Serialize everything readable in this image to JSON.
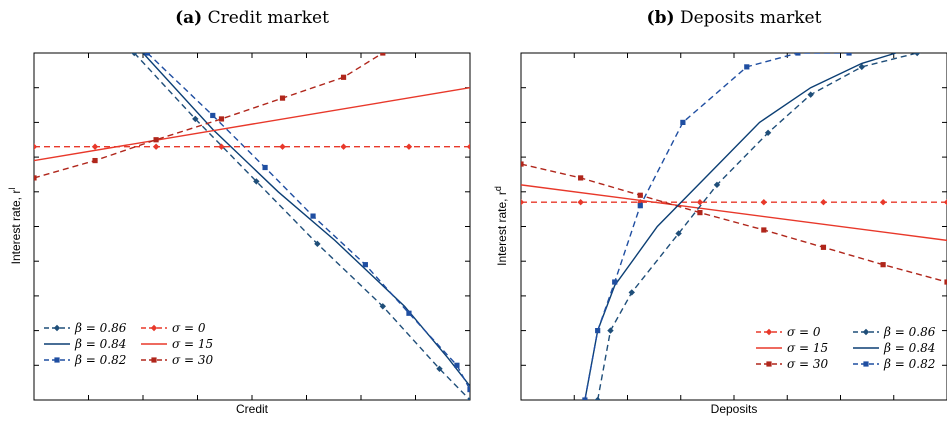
{
  "colors": {
    "navy": "#1f4e79",
    "blue_dark": "#0c3f74",
    "blue": "#1f4ea1",
    "red": "#e8382a",
    "darkred": "#b0261b",
    "axis": "#000000"
  },
  "chart_data": [
    {
      "type": "line",
      "title_tag": "(a)",
      "title": "Credit market",
      "xlabel": "Credit",
      "ylabel": "Interest rate, r",
      "ylabel_sup": "l",
      "xlim": [
        0,
        1
      ],
      "ylim": [
        0,
        1
      ],
      "grid": false,
      "legend_position": "bottom-left",
      "series": [
        {
          "name": "β = 0.86",
          "color": "#1f4e79",
          "dash": true,
          "marker": "diamond",
          "x": [
            0.23,
            0.37,
            0.51,
            0.65,
            0.8,
            0.93,
            1.0
          ],
          "y": [
            1.0,
            0.81,
            0.63,
            0.45,
            0.27,
            0.09,
            0.0
          ]
        },
        {
          "name": "β = 0.84",
          "color": "#0c3f74",
          "dash": false,
          "marker": "none",
          "x": [
            0.25,
            0.41,
            0.56,
            0.69,
            0.85,
            0.95,
            1.0
          ],
          "y": [
            1.0,
            0.78,
            0.6,
            0.46,
            0.27,
            0.12,
            0.04
          ]
        },
        {
          "name": "β = 0.82",
          "color": "#1f4ea1",
          "dash": true,
          "marker": "square",
          "x": [
            0.26,
            0.41,
            0.53,
            0.64,
            0.76,
            0.86,
            0.97,
            1.0
          ],
          "y": [
            1.0,
            0.82,
            0.67,
            0.53,
            0.39,
            0.25,
            0.1,
            0.03
          ]
        },
        {
          "name": "σ = 0",
          "color": "#e8382a",
          "dash": true,
          "marker": "diamond",
          "x": [
            0.0,
            0.14,
            0.28,
            0.43,
            0.57,
            0.71,
            0.86,
            1.0
          ],
          "y": [
            0.73,
            0.73,
            0.73,
            0.73,
            0.73,
            0.73,
            0.73,
            0.73
          ]
        },
        {
          "name": "σ = 15",
          "color": "#e8382a",
          "dash": false,
          "marker": "none",
          "x": [
            0.0,
            1.0
          ],
          "y": [
            0.69,
            0.9
          ]
        },
        {
          "name": "σ = 30",
          "color": "#b0261b",
          "dash": true,
          "marker": "square",
          "x": [
            0.0,
            0.14,
            0.28,
            0.43,
            0.57,
            0.71,
            0.8
          ],
          "y": [
            0.64,
            0.69,
            0.75,
            0.81,
            0.87,
            0.93,
            1.0
          ]
        }
      ],
      "legend_columns": [
        [
          "β = 0.86",
          "β = 0.84",
          "β = 0.82"
        ],
        [
          "σ = 0",
          "σ = 15",
          "σ = 30"
        ]
      ]
    },
    {
      "type": "line",
      "title_tag": "(b)",
      "title": "Deposits market",
      "xlabel": "Deposits",
      "ylabel": "Interest rate, r",
      "ylabel_sup": "d",
      "xlim": [
        0,
        1
      ],
      "ylim": [
        0,
        1
      ],
      "grid": false,
      "legend_position": "bottom-right",
      "series": [
        {
          "name": "σ = 0",
          "color": "#e8382a",
          "dash": true,
          "marker": "diamond",
          "x": [
            0.0,
            0.14,
            0.28,
            0.42,
            0.57,
            0.71,
            0.85,
            1.0
          ],
          "y": [
            0.57,
            0.57,
            0.57,
            0.57,
            0.57,
            0.57,
            0.57,
            0.57
          ]
        },
        {
          "name": "σ = 15",
          "color": "#e8382a",
          "dash": false,
          "marker": "none",
          "x": [
            0.0,
            1.0
          ],
          "y": [
            0.62,
            0.46
          ]
        },
        {
          "name": "σ = 30",
          "color": "#b0261b",
          "dash": true,
          "marker": "square",
          "x": [
            0.0,
            0.14,
            0.28,
            0.42,
            0.57,
            0.71,
            0.85,
            1.0
          ],
          "y": [
            0.68,
            0.64,
            0.59,
            0.54,
            0.49,
            0.44,
            0.39,
            0.34
          ]
        },
        {
          "name": "β = 0.86",
          "color": "#1f4e79",
          "dash": true,
          "marker": "diamond",
          "x": [
            0.18,
            0.21,
            0.26,
            0.37,
            0.46,
            0.58,
            0.68,
            0.8,
            0.93
          ],
          "y": [
            0.0,
            0.2,
            0.31,
            0.48,
            0.62,
            0.77,
            0.88,
            0.96,
            1.0
          ]
        },
        {
          "name": "β = 0.84",
          "color": "#0c3f74",
          "dash": false,
          "marker": "none",
          "x": [
            0.15,
            0.18,
            0.22,
            0.32,
            0.44,
            0.56,
            0.68,
            0.8,
            0.88
          ],
          "y": [
            0.0,
            0.2,
            0.33,
            0.5,
            0.65,
            0.8,
            0.9,
            0.97,
            1.0
          ]
        },
        {
          "name": "β = 0.82",
          "color": "#1f4ea1",
          "dash": true,
          "marker": "square",
          "x": [
            0.15,
            0.18,
            0.22,
            0.28,
            0.38,
            0.53,
            0.65,
            0.77
          ],
          "y": [
            0.0,
            0.2,
            0.34,
            0.56,
            0.8,
            0.96,
            1.0,
            1.0
          ]
        }
      ],
      "legend_columns": [
        [
          "σ = 0",
          "σ = 15",
          "σ = 30"
        ],
        [
          "β = 0.86",
          "β = 0.84",
          "β = 0.82"
        ]
      ]
    }
  ]
}
